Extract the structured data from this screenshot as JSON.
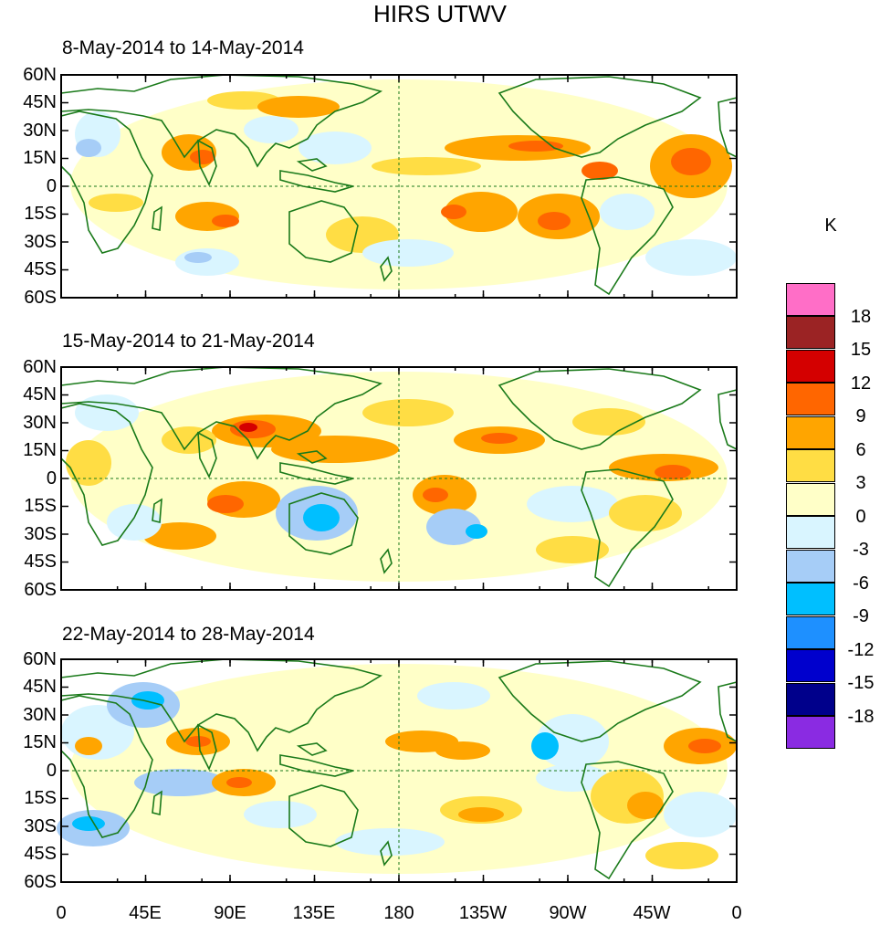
{
  "title": "HIRS UTWV",
  "panels": [
    {
      "title": "8-May-2014 to 14-May-2014"
    },
    {
      "title": "15-May-2014 to 21-May-2014"
    },
    {
      "title": "22-May-2014 to 28-May-2014"
    }
  ],
  "lat_ticks": [
    "60N",
    "45N",
    "30N",
    "15N",
    "0",
    "15S",
    "30S",
    "45S",
    "60S"
  ],
  "lon_ticks": [
    "0",
    "45E",
    "90E",
    "135E",
    "180",
    "135W",
    "90W",
    "45W",
    "0"
  ],
  "colorbar": {
    "units": "K",
    "labels": [
      "18",
      "15",
      "12",
      "9",
      "6",
      "3",
      "0",
      "-3",
      "-6",
      "-9",
      "-12",
      "-15",
      "-18"
    ],
    "colors": [
      "#ff6ec7",
      "#9b2324",
      "#d40000",
      "#ff6600",
      "#ffa500",
      "#ffdd44",
      "#ffffc8",
      "#d9f5ff",
      "#a6cdf7",
      "#00bfff",
      "#1e90ff",
      "#0000cd",
      "#00008b",
      "#8a2be2"
    ]
  },
  "colors": {
    "coast": "#1a7a1a",
    "background": "#ffffff"
  }
}
